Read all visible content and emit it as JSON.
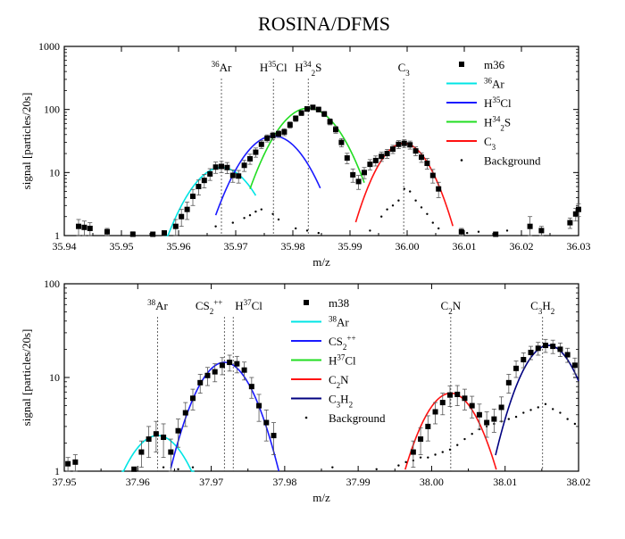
{
  "figure": {
    "title": "ROSINA/DFMS"
  },
  "chart_data": [
    {
      "type": "scatter",
      "xlabel": "m/z",
      "ylabel": "signal [particles/20s]",
      "xlim": [
        35.94,
        36.03
      ],
      "ylim": [
        1,
        1000
      ],
      "yscale": "log",
      "x_ticks": [
        35.94,
        35.95,
        35.96,
        35.97,
        35.98,
        35.99,
        36.0,
        36.01,
        36.02,
        36.03
      ],
      "x_tick_labels": [
        "35.94",
        "35.95",
        "35.96",
        "35.97",
        "35.98",
        "35.99",
        "36.00",
        "36.01",
        "36.02",
        "36.03"
      ],
      "y_ticks": [
        1,
        10,
        100,
        1000
      ],
      "y_tick_labels": [
        "1",
        "10",
        "100",
        "1000"
      ],
      "peak_labels": [
        {
          "label": "36Ar",
          "mass": "36",
          "base": "Ar",
          "x": 35.9675
        },
        {
          "label": "H35Cl",
          "base": "H",
          "mass": "35",
          "rest": "Cl",
          "x": 35.9766
        },
        {
          "label": "H234S",
          "base": "H",
          "sub": "2",
          "mass": "34",
          "rest": "S",
          "x": 35.9827
        },
        {
          "label": "C3",
          "base": "C",
          "sub": "3",
          "x": 35.9994
        }
      ],
      "legend_position": "top-right",
      "legend_marker_label": "m36",
      "legend": [
        {
          "label": "36Ar",
          "mass": "36",
          "base": "Ar",
          "color": "#00e5e5"
        },
        {
          "label": "H35Cl",
          "base": "H",
          "mass": "35",
          "rest": "Cl",
          "color": "#1a1aff"
        },
        {
          "label": "H234S",
          "base": "H",
          "sub": "2",
          "mass": "34",
          "rest": "S",
          "color": "#22dd22"
        },
        {
          "label": "C3",
          "base": "C",
          "sub": "3",
          "color": "#ff1111"
        }
      ],
      "background_label": "Background",
      "curves": [
        {
          "name": "36Ar",
          "color": "#00e5e5",
          "amp": 12,
          "center": 35.9675,
          "sigma": 0.0042,
          "x_range": [
            35.9575,
            35.9735
          ]
        },
        {
          "name": "H35Cl",
          "color": "#1a1aff",
          "amp": 38,
          "center": 35.9766,
          "sigma": 0.0042,
          "x_range": [
            35.9665,
            35.9848
          ]
        },
        {
          "name": "H234S",
          "color": "#22dd22",
          "amp": 105,
          "center": 35.9827,
          "sigma": 0.0042,
          "x_range": [
            35.9725,
            35.9925
          ]
        },
        {
          "name": "C3",
          "color": "#ff1111",
          "amp": 29,
          "center": 35.9994,
          "sigma": 0.0035,
          "x_range": [
            35.991,
            36.008
          ]
        }
      ],
      "points": [
        {
          "x": 35.9425,
          "y": 1.4,
          "err": 0.4
        },
        {
          "x": 35.9435,
          "y": 1.35,
          "err": 0.35
        },
        {
          "x": 35.9445,
          "y": 1.3,
          "err": 0.3
        },
        {
          "x": 35.9475,
          "y": 1.15,
          "err": 0.15
        },
        {
          "x": 35.952,
          "y": 1.05,
          "err": 0.1
        },
        {
          "x": 35.9555,
          "y": 1.05,
          "err": 0.05
        },
        {
          "x": 35.9575,
          "y": 1.1,
          "err": 0.1
        },
        {
          "x": 35.9595,
          "y": 1.4,
          "err": 0.4
        },
        {
          "x": 35.9605,
          "y": 2.0,
          "err": 0.6
        },
        {
          "x": 35.9615,
          "y": 2.6,
          "err": 0.8
        },
        {
          "x": 35.9625,
          "y": 4.2,
          "err": 1.2
        },
        {
          "x": 35.9635,
          "y": 6.0,
          "err": 1.6
        },
        {
          "x": 35.9645,
          "y": 7.5,
          "err": 1.8
        },
        {
          "x": 35.9655,
          "y": 9.5,
          "err": 2.0
        },
        {
          "x": 35.9665,
          "y": 12.2,
          "err": 2.5
        },
        {
          "x": 35.9675,
          "y": 12.5,
          "err": 2.5
        },
        {
          "x": 35.9685,
          "y": 12.0,
          "err": 2.4
        },
        {
          "x": 35.9695,
          "y": 9.0,
          "err": 2.0
        },
        {
          "x": 35.9705,
          "y": 8.8,
          "err": 2.0
        },
        {
          "x": 35.9715,
          "y": 13.0,
          "err": 2.6
        },
        {
          "x": 35.9725,
          "y": 16.5,
          "err": 3.0
        },
        {
          "x": 35.9735,
          "y": 21.0,
          "err": 3.5
        },
        {
          "x": 35.9745,
          "y": 28.0,
          "err": 4.0
        },
        {
          "x": 35.9755,
          "y": 35.0,
          "err": 4.5
        },
        {
          "x": 35.9765,
          "y": 38.5,
          "err": 5.0
        },
        {
          "x": 35.9775,
          "y": 41.0,
          "err": 5.0
        },
        {
          "x": 35.9785,
          "y": 44.0,
          "err": 5.5
        },
        {
          "x": 35.9795,
          "y": 57.0,
          "err": 6.5
        },
        {
          "x": 35.9805,
          "y": 72.0,
          "err": 7.5
        },
        {
          "x": 35.9815,
          "y": 88.0,
          "err": 8.0
        },
        {
          "x": 35.9825,
          "y": 102.0,
          "err": 9.0
        },
        {
          "x": 35.9835,
          "y": 108.0,
          "err": 9.0
        },
        {
          "x": 35.9845,
          "y": 100.0,
          "err": 9.0
        },
        {
          "x": 35.9855,
          "y": 85.0,
          "err": 8.0
        },
        {
          "x": 35.9865,
          "y": 64.0,
          "err": 7.0
        },
        {
          "x": 35.9875,
          "y": 48.0,
          "err": 6.0
        },
        {
          "x": 35.9885,
          "y": 30.0,
          "err": 4.5
        },
        {
          "x": 35.9895,
          "y": 17.0,
          "err": 3.2
        },
        {
          "x": 35.9905,
          "y": 9.2,
          "err": 2.2
        },
        {
          "x": 35.9915,
          "y": 7.2,
          "err": 1.8
        },
        {
          "x": 35.9925,
          "y": 10.0,
          "err": 2.0
        },
        {
          "x": 35.9935,
          "y": 13.5,
          "err": 2.5
        },
        {
          "x": 35.9945,
          "y": 15.5,
          "err": 2.8
        },
        {
          "x": 35.9955,
          "y": 18.0,
          "err": 3.0
        },
        {
          "x": 35.9965,
          "y": 20.0,
          "err": 3.2
        },
        {
          "x": 35.9975,
          "y": 23.5,
          "err": 3.5
        },
        {
          "x": 35.9985,
          "y": 28.0,
          "err": 4.0
        },
        {
          "x": 35.9995,
          "y": 29.0,
          "err": 4.0
        },
        {
          "x": 36.0005,
          "y": 27.5,
          "err": 4.0
        },
        {
          "x": 36.0015,
          "y": 22.0,
          "err": 3.5
        },
        {
          "x": 36.0025,
          "y": 17.5,
          "err": 3.0
        },
        {
          "x": 36.0035,
          "y": 14.0,
          "err": 2.7
        },
        {
          "x": 36.0045,
          "y": 9.0,
          "err": 2.2
        },
        {
          "x": 36.0055,
          "y": 5.5,
          "err": 1.5
        },
        {
          "x": 36.0095,
          "y": 1.15,
          "err": 0.15
        },
        {
          "x": 36.0155,
          "y": 1.05,
          "err": 0.05
        },
        {
          "x": 36.0215,
          "y": 1.4,
          "err": 0.6
        },
        {
          "x": 36.0235,
          "y": 1.2,
          "err": 0.2
        },
        {
          "x": 36.0285,
          "y": 1.6,
          "err": 0.3
        },
        {
          "x": 36.0295,
          "y": 2.2,
          "err": 0.5
        },
        {
          "x": 36.03,
          "y": 2.6,
          "err": 0.6
        }
      ],
      "background": [
        {
          "x": 35.9665,
          "y": 1.4
        },
        {
          "x": 35.9695,
          "y": 1.6
        },
        {
          "x": 35.9715,
          "y": 1.9
        },
        {
          "x": 35.9725,
          "y": 2.1
        },
        {
          "x": 35.9735,
          "y": 2.4
        },
        {
          "x": 35.9745,
          "y": 2.6
        },
        {
          "x": 35.9765,
          "y": 2.2
        },
        {
          "x": 35.9775,
          "y": 1.8
        },
        {
          "x": 35.9805,
          "y": 1.3
        },
        {
          "x": 35.9825,
          "y": 1.2
        },
        {
          "x": 35.9845,
          "y": 1.1
        },
        {
          "x": 35.9935,
          "y": 1.2
        },
        {
          "x": 35.9955,
          "y": 2.0
        },
        {
          "x": 35.9965,
          "y": 2.6
        },
        {
          "x": 35.9975,
          "y": 3.0
        },
        {
          "x": 35.9985,
          "y": 3.6
        },
        {
          "x": 35.9995,
          "y": 5.5
        },
        {
          "x": 36.0005,
          "y": 5.0
        },
        {
          "x": 36.0015,
          "y": 3.6
        },
        {
          "x": 36.0025,
          "y": 2.8
        },
        {
          "x": 36.0035,
          "y": 2.2
        },
        {
          "x": 36.0045,
          "y": 1.6
        },
        {
          "x": 36.0055,
          "y": 1.3
        },
        {
          "x": 36.0105,
          "y": 1.1
        },
        {
          "x": 36.0125,
          "y": 1.15
        },
        {
          "x": 36.0175,
          "y": 1.2
        }
      ]
    },
    {
      "type": "scatter",
      "xlabel": "m/z",
      "ylabel": "signal [particles/20s]",
      "xlim": [
        37.95,
        38.02
      ],
      "ylim": [
        1,
        100
      ],
      "yscale": "log",
      "x_ticks": [
        37.95,
        37.96,
        37.97,
        37.98,
        37.99,
        38.0,
        38.01,
        38.02
      ],
      "x_tick_labels": [
        "37.95",
        "37.96",
        "37.97",
        "37.98",
        "37.99",
        "38.00",
        "38.01",
        "38.02"
      ],
      "y_ticks": [
        1,
        10,
        100
      ],
      "y_tick_labels": [
        "1",
        "10",
        "100"
      ],
      "peak_labels": [
        {
          "label": "38Ar",
          "mass": "38",
          "base": "Ar",
          "x": 37.9627
        },
        {
          "label": "CS2++",
          "base": "CS",
          "sub": "2",
          "sup": "++",
          "x": 37.9718
        },
        {
          "label": "H37Cl",
          "base": "H",
          "mass": "37",
          "rest": "Cl",
          "x": 37.973
        },
        {
          "label": "C2N",
          "base": "C",
          "sub": "2",
          "rest": "N",
          "x": 38.0026
        },
        {
          "label": "C3H2",
          "base": "C",
          "sub": "3",
          "rest": "H",
          "sub2": "2",
          "x": 38.0151
        }
      ],
      "legend_position": "top-center",
      "legend_marker_label": "m38",
      "legend": [
        {
          "label": "38Ar",
          "mass": "38",
          "base": "Ar",
          "color": "#00e5e5"
        },
        {
          "label": "CS2++",
          "base": "CS",
          "sub": "2",
          "sup": "++",
          "color": "#1a1aff"
        },
        {
          "label": "H37Cl",
          "base": "H",
          "mass": "37",
          "rest": "Cl",
          "color": "#22dd22"
        },
        {
          "label": "C2N",
          "base": "C",
          "sub": "2",
          "rest": "N",
          "color": "#ff1111"
        },
        {
          "label": "C3H2",
          "base": "C",
          "sub": "3",
          "rest": "H",
          "sub2": "2",
          "color": "#000080"
        }
      ],
      "background_label": "Background",
      "curves": [
        {
          "name": "38Ar",
          "color": "#00e5e5",
          "amp": 2.4,
          "center": 37.9627,
          "sigma": 0.0035,
          "x_range": [
            37.9578,
            37.9677
          ]
        },
        {
          "name": "CS2++",
          "color": "#1a1aff",
          "amp": 14.5,
          "center": 37.9718,
          "sigma": 0.0032,
          "x_range": [
            37.9645,
            37.9792
          ]
        },
        {
          "name": "C2N",
          "color": "#ff1111",
          "amp": 6.8,
          "center": 38.0026,
          "sigma": 0.0032,
          "x_range": [
            37.9964,
            38.0088
          ]
        },
        {
          "name": "C3H2",
          "color": "#000080",
          "amp": 22,
          "center": 38.0159,
          "sigma": 0.0031,
          "x_range": [
            38.0087,
            38.02
          ]
        }
      ],
      "points": [
        {
          "x": 37.9505,
          "y": 1.2,
          "err": 0.2
        },
        {
          "x": 37.9515,
          "y": 1.25,
          "err": 0.25
        },
        {
          "x": 37.9595,
          "y": 1.05,
          "err": 0.05
        },
        {
          "x": 37.9605,
          "y": 1.6,
          "err": 0.5
        },
        {
          "x": 37.9615,
          "y": 2.2,
          "err": 0.8
        },
        {
          "x": 37.9625,
          "y": 2.5,
          "err": 0.9
        },
        {
          "x": 37.9635,
          "y": 2.3,
          "err": 0.9
        },
        {
          "x": 37.9645,
          "y": 1.6,
          "err": 0.6
        },
        {
          "x": 37.9655,
          "y": 2.7,
          "err": 0.9
        },
        {
          "x": 37.9665,
          "y": 4.2,
          "err": 1.2
        },
        {
          "x": 37.9675,
          "y": 6.0,
          "err": 1.5
        },
        {
          "x": 37.9685,
          "y": 8.8,
          "err": 2.0
        },
        {
          "x": 37.9695,
          "y": 10.5,
          "err": 2.3
        },
        {
          "x": 37.9705,
          "y": 11.5,
          "err": 2.5
        },
        {
          "x": 37.9715,
          "y": 13.5,
          "err": 2.8
        },
        {
          "x": 37.9725,
          "y": 14.5,
          "err": 2.8
        },
        {
          "x": 37.9735,
          "y": 14.0,
          "err": 2.8
        },
        {
          "x": 37.9745,
          "y": 12.0,
          "err": 2.6
        },
        {
          "x": 37.9755,
          "y": 8.0,
          "err": 2.0
        },
        {
          "x": 37.9765,
          "y": 5.0,
          "err": 1.6
        },
        {
          "x": 37.9775,
          "y": 3.3,
          "err": 1.2
        },
        {
          "x": 37.9785,
          "y": 2.4,
          "err": 0.9
        },
        {
          "x": 37.9975,
          "y": 1.6,
          "err": 0.5
        },
        {
          "x": 37.9985,
          "y": 2.2,
          "err": 0.7
        },
        {
          "x": 37.9995,
          "y": 3.0,
          "err": 0.9
        },
        {
          "x": 38.0005,
          "y": 4.3,
          "err": 1.1
        },
        {
          "x": 38.0015,
          "y": 5.4,
          "err": 1.4
        },
        {
          "x": 38.0025,
          "y": 6.5,
          "err": 1.6
        },
        {
          "x": 38.0035,
          "y": 6.6,
          "err": 1.6
        },
        {
          "x": 38.0045,
          "y": 6.0,
          "err": 1.5
        },
        {
          "x": 38.0055,
          "y": 5.0,
          "err": 1.3
        },
        {
          "x": 38.0065,
          "y": 4.0,
          "err": 1.2
        },
        {
          "x": 38.0075,
          "y": 3.3,
          "err": 1.0
        },
        {
          "x": 38.0085,
          "y": 3.6,
          "err": 1.0
        },
        {
          "x": 38.0095,
          "y": 4.8,
          "err": 1.4
        },
        {
          "x": 38.0105,
          "y": 8.8,
          "err": 2.0
        },
        {
          "x": 38.0115,
          "y": 12.5,
          "err": 2.5
        },
        {
          "x": 38.0125,
          "y": 15.5,
          "err": 2.8
        },
        {
          "x": 38.0135,
          "y": 18.5,
          "err": 3.0
        },
        {
          "x": 38.0145,
          "y": 20.5,
          "err": 3.2
        },
        {
          "x": 38.0155,
          "y": 22.0,
          "err": 3.5
        },
        {
          "x": 38.0165,
          "y": 21.5,
          "err": 3.5
        },
        {
          "x": 38.0175,
          "y": 20.0,
          "err": 3.3
        },
        {
          "x": 38.0185,
          "y": 17.5,
          "err": 3.0
        },
        {
          "x": 38.0195,
          "y": 13.5,
          "err": 2.6
        }
      ],
      "background": [
        {
          "x": 37.9635,
          "y": 1.1
        },
        {
          "x": 37.9655,
          "y": 1.05
        },
        {
          "x": 37.9675,
          "y": 1.1
        },
        {
          "x": 37.9865,
          "y": 1.1
        },
        {
          "x": 37.9925,
          "y": 1.05
        },
        {
          "x": 37.9955,
          "y": 1.15
        },
        {
          "x": 37.9965,
          "y": 1.25
        },
        {
          "x": 37.9975,
          "y": 1.3
        },
        {
          "x": 37.9985,
          "y": 1.4
        },
        {
          "x": 37.9995,
          "y": 1.4
        },
        {
          "x": 38.0005,
          "y": 1.5
        },
        {
          "x": 38.0015,
          "y": 1.6
        },
        {
          "x": 38.0025,
          "y": 1.7
        },
        {
          "x": 38.0035,
          "y": 1.9
        },
        {
          "x": 38.0045,
          "y": 2.2
        },
        {
          "x": 38.0055,
          "y": 2.5
        },
        {
          "x": 38.0065,
          "y": 2.8
        },
        {
          "x": 38.0075,
          "y": 3.0
        },
        {
          "x": 38.0085,
          "y": 3.2
        },
        {
          "x": 38.0095,
          "y": 3.4
        },
        {
          "x": 38.0105,
          "y": 3.6
        },
        {
          "x": 38.0115,
          "y": 3.8
        },
        {
          "x": 38.0125,
          "y": 4.2
        },
        {
          "x": 38.0135,
          "y": 4.5
        },
        {
          "x": 38.0145,
          "y": 4.8
        },
        {
          "x": 38.0155,
          "y": 5.2
        },
        {
          "x": 38.0165,
          "y": 4.6
        },
        {
          "x": 38.0175,
          "y": 4.2
        },
        {
          "x": 38.0185,
          "y": 3.6
        },
        {
          "x": 38.0195,
          "y": 3.2
        }
      ]
    }
  ]
}
